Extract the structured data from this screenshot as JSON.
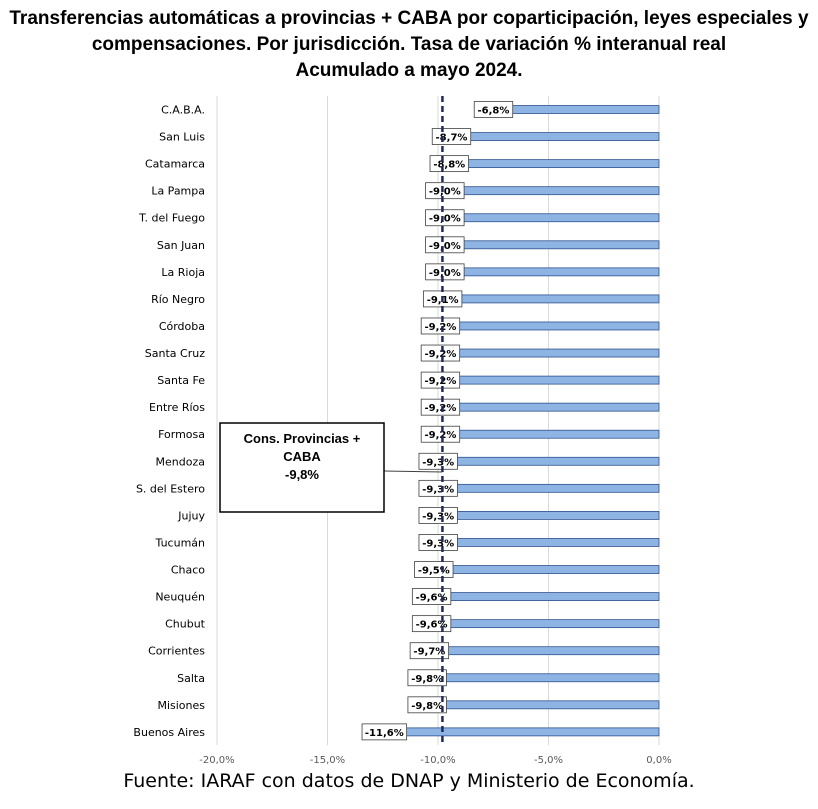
{
  "title_lines": [
    "Transferencias automáticas a provincias + CABA por coparticipación, leyes especiales y",
    "compensaciones. Por jurisdicción. Tasa de variación % interanual real",
    "Acumulado a mayo 2024."
  ],
  "source": "Fuente: IARAF con datos de DNAP y Ministerio de Economía.",
  "chart_data": {
    "type": "bar",
    "orientation": "horizontal",
    "title": "Transferencias automáticas a provincias + CABA por coparticipación, leyes especiales y compensaciones. Por jurisdicción. Tasa de variación % interanual real. Acumulado a mayo 2024.",
    "categories": [
      "C.A.B.A.",
      "San Luis",
      "Catamarca",
      "La Pampa",
      "T. del Fuego",
      "San Juan",
      "La Rioja",
      "Río Negro",
      "Córdoba",
      "Santa Cruz",
      "Santa Fe",
      "Entre Ríos",
      "Formosa",
      "Mendoza",
      "S. del Estero",
      "Jujuy",
      "Tucumán",
      "Chaco",
      "Neuquén",
      "Chubut",
      "Corrientes",
      "Salta",
      "Misiones",
      "Buenos Aires"
    ],
    "values": [
      -6.8,
      -8.7,
      -8.8,
      -9.0,
      -9.0,
      -9.0,
      -9.0,
      -9.1,
      -9.2,
      -9.2,
      -9.2,
      -9.2,
      -9.2,
      -9.3,
      -9.3,
      -9.3,
      -9.3,
      -9.5,
      -9.6,
      -9.6,
      -9.7,
      -9.8,
      -9.8,
      -11.6
    ],
    "data_labels": [
      "-6,8%",
      "-8,7%",
      "-8,8%",
      "-9,0%",
      "-9,0%",
      "-9,0%",
      "-9,0%",
      "-9,1%",
      "-9,2%",
      "-9,2%",
      "-9,2%",
      "-9,2%",
      "-9,2%",
      "-9,3%",
      "-9,3%",
      "-9,3%",
      "-9,3%",
      "-9,5%",
      "-9,6%",
      "-9,6%",
      "-9,7%",
      "-9,8%",
      "-9,8%",
      "-11,6%"
    ],
    "xlim": [
      -20,
      0
    ],
    "xticks": [
      -20,
      -15,
      -10,
      -5,
      0
    ],
    "xtick_labels": [
      "-20,0%",
      "-15,0%",
      "-10,0%",
      "-5,0%",
      "0,0%"
    ],
    "grid": true,
    "bar_color": "#8EB4E3",
    "bar_edge_color": "#2F528F",
    "reference_line": {
      "value": -9.8,
      "style": "dashed",
      "color": "#1F2A5C",
      "annotation_lines": [
        "Cons. Provincias +",
        "CABA",
        "-9,8%"
      ]
    }
  }
}
